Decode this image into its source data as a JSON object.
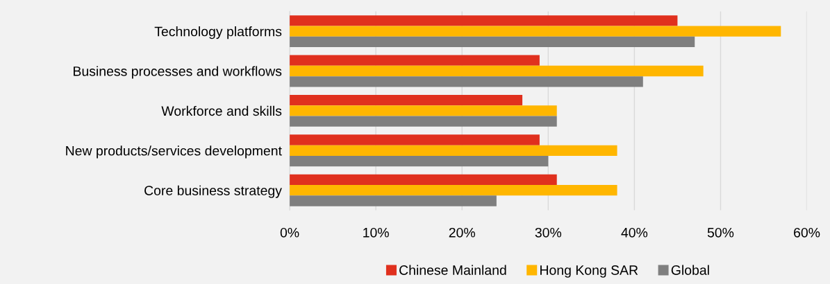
{
  "chart_data": {
    "type": "bar",
    "orientation": "horizontal",
    "categories": [
      "Technology platforms",
      "Business processes and workflows",
      "Workforce and skills",
      "New products/services development",
      "Core business strategy"
    ],
    "series": [
      {
        "name": "Chinese Mainland",
        "color": "#e0301e",
        "values": [
          45,
          29,
          27,
          29,
          31
        ]
      },
      {
        "name": "Hong Kong SAR",
        "color": "#ffb600",
        "values": [
          57,
          48,
          31,
          38,
          38
        ]
      },
      {
        "name": "Global",
        "color": "#7f7f7f",
        "values": [
          47,
          41,
          31,
          30,
          24
        ]
      }
    ],
    "xlim": [
      0,
      60
    ],
    "xticks": [
      {
        "value": 0,
        "label": "0%"
      },
      {
        "value": 10,
        "label": "10%"
      },
      {
        "value": 20,
        "label": "20%"
      },
      {
        "value": 30,
        "label": "30%"
      },
      {
        "value": 40,
        "label": "40%"
      },
      {
        "value": 50,
        "label": "50%"
      },
      {
        "value": 60,
        "label": "60%"
      }
    ],
    "grid": "x",
    "legend": "bottom"
  }
}
